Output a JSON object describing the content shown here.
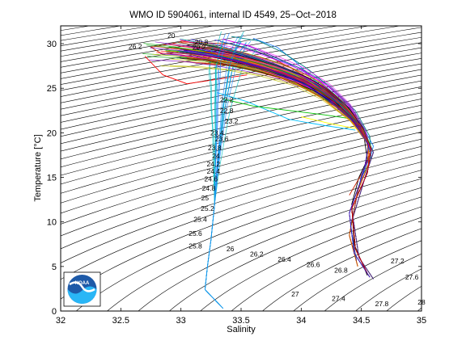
{
  "chart_data": {
    "type": "scatter",
    "title": "WMO ID 5904061, internal ID 4549, 25−Oct−2018",
    "xlabel": "Salinity",
    "ylabel": "Temperature [°C]",
    "xlim": [
      32,
      35
    ],
    "ylim": [
      0,
      32
    ],
    "x_ticks": [
      "32",
      "32.5",
      "33",
      "33.5",
      "34",
      "34.5",
      "35"
    ],
    "y_ticks": [
      "0",
      "5",
      "10",
      "15",
      "20",
      "25",
      "30"
    ],
    "grid": false,
    "logo": "NOAA",
    "density_contour_labels": [
      {
        "text": "20",
        "s": 32.92,
        "t": 30.9
      },
      {
        "text": "26.2",
        "s": 32.62,
        "t": 29.7
      },
      {
        "text": "20.8",
        "s": 33.17,
        "t": 30.2
      },
      {
        "text": "20.2",
        "s": 33.15,
        "t": 29.6
      },
      {
        "text": "22.2",
        "s": 33.38,
        "t": 23.7
      },
      {
        "text": "22.8",
        "s": 33.38,
        "t": 22.5
      },
      {
        "text": "23.2",
        "s": 33.42,
        "t": 21.3
      },
      {
        "text": "23.4",
        "s": 33.3,
        "t": 20.0
      },
      {
        "text": "23.6",
        "s": 33.34,
        "t": 19.3
      },
      {
        "text": "23.8",
        "s": 33.28,
        "t": 18.3
      },
      {
        "text": "24",
        "s": 33.29,
        "t": 17.4
      },
      {
        "text": "24.2",
        "s": 33.27,
        "t": 16.5
      },
      {
        "text": "24.4",
        "s": 33.27,
        "t": 15.7
      },
      {
        "text": "24.6",
        "s": 33.25,
        "t": 14.8
      },
      {
        "text": "24.8",
        "s": 33.23,
        "t": 13.8
      },
      {
        "text": "25",
        "s": 33.2,
        "t": 12.7
      },
      {
        "text": "25.2",
        "s": 33.22,
        "t": 11.5
      },
      {
        "text": "25.4",
        "s": 33.16,
        "t": 10.3
      },
      {
        "text": "25.6",
        "s": 33.12,
        "t": 8.7
      },
      {
        "text": "25.8",
        "s": 33.12,
        "t": 7.3
      },
      {
        "text": "26",
        "s": 33.41,
        "t": 7.0
      },
      {
        "text": "26.2",
        "s": 33.63,
        "t": 6.4
      },
      {
        "text": "26.4",
        "s": 33.86,
        "t": 5.8
      },
      {
        "text": "26.6",
        "s": 34.1,
        "t": 5.2
      },
      {
        "text": "26.8",
        "s": 34.33,
        "t": 4.6
      },
      {
        "text": "27",
        "s": 33.95,
        "t": 1.9
      },
      {
        "text": "27.2",
        "s": 34.8,
        "t": 5.6
      },
      {
        "text": "27.4",
        "s": 34.31,
        "t": 1.4
      },
      {
        "text": "27.6",
        "s": 34.92,
        "t": 3.8
      },
      {
        "text": "27.8",
        "s": 34.67,
        "t": 0.8
      },
      {
        "text": "28",
        "s": 35.0,
        "t": 1.0
      }
    ],
    "series": [
      {
        "color": "#ff0000",
        "values": [
          [
            33.02,
            29.3
          ],
          [
            33.2,
            29.0
          ],
          [
            33.45,
            28.2
          ],
          [
            33.7,
            27.3
          ],
          [
            33.95,
            26.2
          ],
          [
            34.15,
            24.8
          ],
          [
            34.35,
            22.8
          ],
          [
            34.5,
            20.5
          ],
          [
            34.58,
            18.2
          ],
          [
            34.55,
            15.5
          ],
          [
            34.42,
            11.5
          ],
          [
            34.45,
            7.0
          ],
          [
            34.55,
            4.2
          ]
        ]
      },
      {
        "color": "#0000ff",
        "values": [
          [
            33.1,
            29.4
          ],
          [
            33.3,
            29.0
          ],
          [
            33.55,
            28.1
          ],
          [
            33.8,
            27.1
          ],
          [
            34.05,
            25.7
          ],
          [
            34.25,
            23.8
          ],
          [
            34.45,
            21.2
          ],
          [
            34.56,
            18.6
          ],
          [
            34.52,
            15.6
          ],
          [
            34.4,
            11.0
          ],
          [
            34.44,
            6.5
          ],
          [
            34.57,
            3.8
          ]
        ]
      },
      {
        "color": "#00a000",
        "values": [
          [
            32.9,
            29.2
          ],
          [
            33.15,
            28.9
          ],
          [
            33.4,
            28.3
          ],
          [
            33.65,
            27.5
          ],
          [
            33.9,
            26.5
          ],
          [
            34.1,
            25.2
          ],
          [
            34.32,
            23.2
          ],
          [
            34.5,
            20.6
          ],
          [
            34.6,
            17.8
          ],
          [
            34.54,
            15.4
          ],
          [
            34.43,
            10.5
          ],
          [
            34.48,
            6.0
          ],
          [
            34.6,
            3.6
          ]
        ]
      },
      {
        "color": "#ff00ff",
        "values": [
          [
            33.2,
            29.6
          ],
          [
            33.45,
            29.0
          ],
          [
            33.7,
            28.0
          ],
          [
            33.95,
            26.8
          ],
          [
            34.18,
            25.2
          ],
          [
            34.38,
            23.0
          ],
          [
            34.53,
            20.2
          ],
          [
            34.58,
            17.5
          ],
          [
            34.5,
            15.2
          ],
          [
            34.41,
            9.5
          ],
          [
            34.46,
            5.6
          ]
        ]
      },
      {
        "color": "#00bfbf",
        "values": [
          [
            33.5,
            30.3
          ],
          [
            33.45,
            29.2
          ],
          [
            33.4,
            27.5
          ],
          [
            33.38,
            25.5
          ],
          [
            33.35,
            23.0
          ],
          [
            33.33,
            20.0
          ],
          [
            33.3,
            16.0
          ],
          [
            33.28,
            12.0
          ],
          [
            33.25,
            8.0
          ],
          [
            33.22,
            5.0
          ],
          [
            33.2,
            2.4
          ],
          [
            33.35,
            0.3
          ]
        ]
      },
      {
        "color": "#bfbf00",
        "values": [
          [
            33.0,
            28.6
          ],
          [
            33.25,
            28.3
          ],
          [
            33.5,
            27.8
          ],
          [
            33.75,
            27.0
          ],
          [
            34.0,
            25.8
          ],
          [
            34.22,
            24.0
          ],
          [
            34.42,
            21.6
          ],
          [
            34.55,
            19.0
          ],
          [
            34.56,
            16.5
          ],
          [
            34.47,
            13.5
          ],
          [
            34.4,
            8.5
          ],
          [
            34.47,
            5.0
          ]
        ]
      },
      {
        "color": "#000000",
        "values": [
          [
            33.05,
            29.8
          ],
          [
            33.3,
            29.3
          ],
          [
            33.55,
            28.5
          ],
          [
            33.8,
            27.6
          ],
          [
            34.02,
            26.3
          ],
          [
            34.22,
            24.6
          ],
          [
            34.4,
            22.4
          ],
          [
            34.52,
            19.8
          ],
          [
            34.55,
            17.0
          ],
          [
            34.48,
            15.0
          ],
          [
            34.42,
            12.0
          ],
          [
            34.44,
            7.5
          ],
          [
            34.55,
            4.0
          ]
        ]
      },
      {
        "color": "#cc2200",
        "values": [
          [
            32.85,
            28.8
          ],
          [
            32.75,
            29.6
          ],
          [
            33.0,
            30.2
          ],
          [
            33.4,
            30.0
          ],
          [
            33.7,
            28.8
          ],
          [
            33.95,
            27.0
          ],
          [
            34.2,
            25.0
          ],
          [
            34.45,
            22.0
          ],
          [
            34.58,
            18.0
          ],
          [
            34.52,
            15.8
          ],
          [
            34.4,
            13.0
          ]
        ]
      },
      {
        "color": "#2288ff",
        "values": [
          [
            33.6,
            30.6
          ],
          [
            33.8,
            29.6
          ],
          [
            33.95,
            28.0
          ],
          [
            34.1,
            26.0
          ],
          [
            34.3,
            23.8
          ],
          [
            34.5,
            21.0
          ],
          [
            34.6,
            18.5
          ],
          [
            34.55,
            16.0
          ]
        ]
      },
      {
        "color": "#7a00c0",
        "values": [
          [
            33.35,
            30.5
          ],
          [
            33.55,
            29.8
          ],
          [
            33.75,
            28.7
          ],
          [
            33.98,
            27.3
          ],
          [
            34.2,
            25.5
          ],
          [
            34.4,
            23.0
          ],
          [
            34.52,
            20.3
          ],
          [
            34.57,
            17.4
          ],
          [
            34.5,
            15.3
          ]
        ]
      },
      {
        "color": "#ff8800",
        "values": [
          [
            33.25,
            28.8
          ],
          [
            33.5,
            28.4
          ],
          [
            33.75,
            27.7
          ],
          [
            34.0,
            26.5
          ],
          [
            34.22,
            24.7
          ],
          [
            34.42,
            22.3
          ],
          [
            34.55,
            19.5
          ],
          [
            34.57,
            16.8
          ]
        ]
      },
      {
        "color": "#008080",
        "values": [
          [
            33.42,
            30.8
          ],
          [
            33.65,
            30.3
          ],
          [
            33.85,
            29.0
          ],
          [
            34.05,
            27.2
          ],
          [
            34.25,
            25.0
          ],
          [
            34.45,
            22.5
          ],
          [
            34.57,
            19.6
          ],
          [
            34.58,
            17.0
          ],
          [
            34.5,
            15.0
          ]
        ]
      },
      {
        "color": "#ff0000",
        "values": [
          [
            32.7,
            28.6
          ],
          [
            32.85,
            26.5
          ],
          [
            33.05,
            25.5
          ],
          [
            33.3,
            26.0
          ],
          [
            33.55,
            26.5
          ]
        ]
      },
      {
        "color": "#00c0ff",
        "values": [
          [
            33.3,
            24.5
          ],
          [
            33.55,
            23.5
          ],
          [
            33.9,
            21.5
          ],
          [
            34.2,
            20.8
          ],
          [
            34.45,
            20.3
          ]
        ]
      },
      {
        "color": "#ffff00",
        "values": [
          [
            34.0,
            21.8
          ],
          [
            34.25,
            21.0
          ],
          [
            34.45,
            20.5
          ]
        ]
      },
      {
        "color": "#00c000",
        "values": [
          [
            33.35,
            23.8
          ],
          [
            33.6,
            23.0
          ],
          [
            33.9,
            22.5
          ],
          [
            34.2,
            22.0
          ],
          [
            34.4,
            21.6
          ]
        ]
      }
    ]
  }
}
